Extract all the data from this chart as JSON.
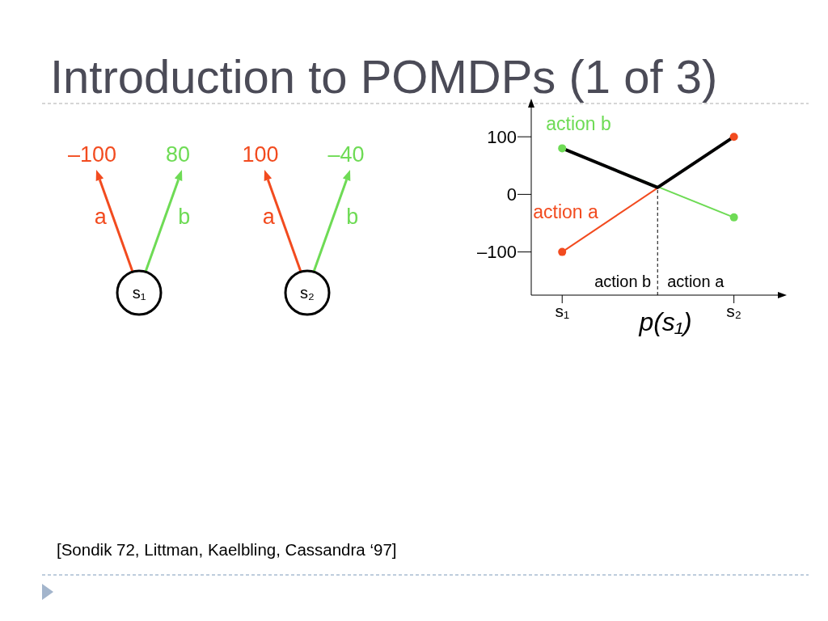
{
  "chart_data": [
    {
      "type": "other",
      "title": "Introduction to POMDPs (1 of 3)",
      "categories": [
        "s₁",
        "s₂"
      ],
      "series": [
        {
          "name": "a",
          "color": "#f24b1f",
          "values": [
            -100,
            100
          ],
          "value_labels": [
            "–100",
            "100"
          ]
        },
        {
          "name": "b",
          "color": "#6edb55",
          "values": [
            80,
            -40
          ],
          "value_labels": [
            "80",
            "–40"
          ]
        }
      ],
      "annotations": [
        "[Sondik 72, Littman, Kaelbling, Cassandra ‘97]"
      ]
    },
    {
      "type": "line",
      "categories": [
        "s₁",
        null,
        null,
        null,
        null,
        null,
        null,
        null,
        null,
        "s₂"
      ],
      "series": [
        {
          "name": "action a",
          "color": "#f24b1f",
          "values": [
            -100,
            null,
            null,
            null,
            null,
            null,
            null,
            null,
            null,
            100
          ]
        },
        {
          "name": "action b",
          "color": "#6edb55",
          "values": [
            80,
            null,
            null,
            null,
            null,
            null,
            null,
            null,
            null,
            -40
          ]
        },
        {
          "color": "#000000",
          "values": [
            80,
            null,
            null,
            null,
            null,
            12,
            null,
            null,
            null,
            100
          ],
          "marker": "none"
        }
      ],
      "xlabel": "p(s₁)",
      "ylim": [
        -175,
        155
      ],
      "yticks": [
        {
          "value": -100,
          "label": "–100"
        },
        0,
        100
      ],
      "marker": "circle",
      "annotations": [
        "action b",
        "action a"
      ]
    }
  ]
}
